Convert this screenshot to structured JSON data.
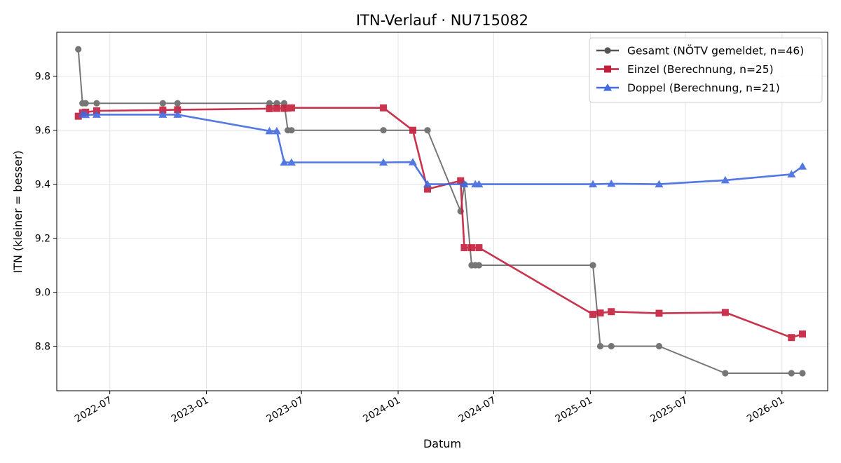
{
  "chart_data": {
    "type": "line",
    "title": "ITN-Verlauf · NU715082",
    "xlabel": "Datum",
    "ylabel": "ITN  (kleiner = besser)",
    "x_type": "date",
    "xlim": [
      "2022-03-22",
      "2026-03-29"
    ],
    "ylim": [
      8.635,
      9.963
    ],
    "x_ticks": [
      {
        "date": "2022-07-01",
        "label": "2022-07"
      },
      {
        "date": "2023-01-01",
        "label": "2023-01"
      },
      {
        "date": "2023-07-01",
        "label": "2023-07"
      },
      {
        "date": "2024-01-01",
        "label": "2024-01"
      },
      {
        "date": "2024-07-01",
        "label": "2024-07"
      },
      {
        "date": "2025-01-01",
        "label": "2025-01"
      },
      {
        "date": "2025-07-01",
        "label": "2025-07"
      },
      {
        "date": "2026-01-01",
        "label": "2026-01"
      }
    ],
    "y_ticks": [
      {
        "value": 8.8,
        "label": "8.8"
      },
      {
        "value": 9.0,
        "label": "9.0"
      },
      {
        "value": 9.2,
        "label": "9.2"
      },
      {
        "value": 9.4,
        "label": "9.4"
      },
      {
        "value": 9.6,
        "label": "9.6"
      },
      {
        "value": 9.8,
        "label": "9.8"
      }
    ],
    "grid": true,
    "legend_position": "top-right",
    "series": [
      {
        "name": "Gesamt (NÖTV gemeldet, n=46)",
        "color": "#555555",
        "marker": "circle",
        "points": [
          [
            "2022-05-02",
            9.9
          ],
          [
            "2022-05-10",
            9.7
          ],
          [
            "2022-05-16",
            9.7
          ],
          [
            "2022-06-06",
            9.7
          ],
          [
            "2022-10-10",
            9.7
          ],
          [
            "2022-11-07",
            9.7
          ],
          [
            "2023-05-01",
            9.7
          ],
          [
            "2023-05-15",
            9.7
          ],
          [
            "2023-05-29",
            9.7
          ],
          [
            "2023-06-05",
            9.6
          ],
          [
            "2023-06-12",
            9.6
          ],
          [
            "2023-12-04",
            9.6
          ],
          [
            "2024-02-26",
            9.6
          ],
          [
            "2024-04-29",
            9.3
          ],
          [
            "2024-05-06",
            9.4
          ],
          [
            "2024-05-20",
            9.1
          ],
          [
            "2024-05-27",
            9.1
          ],
          [
            "2024-06-03",
            9.1
          ],
          [
            "2025-01-06",
            9.1
          ],
          [
            "2025-01-20",
            8.8
          ],
          [
            "2025-02-10",
            8.8
          ],
          [
            "2025-05-12",
            8.8
          ],
          [
            "2025-09-15",
            8.7
          ],
          [
            "2026-01-19",
            8.7
          ],
          [
            "2026-02-09",
            8.7
          ]
        ]
      },
      {
        "name": "Einzel (Berechnung, n=25)",
        "color": "#c41e3a",
        "marker": "square",
        "points": [
          [
            "2022-05-02",
            9.652
          ],
          [
            "2022-05-10",
            9.665
          ],
          [
            "2022-05-16",
            9.667
          ],
          [
            "2022-06-06",
            9.672
          ],
          [
            "2022-10-10",
            9.675
          ],
          [
            "2022-11-07",
            9.676
          ],
          [
            "2023-05-01",
            9.68
          ],
          [
            "2023-05-15",
            9.681
          ],
          [
            "2023-05-29",
            9.681
          ],
          [
            "2023-06-05",
            9.682
          ],
          [
            "2023-06-12",
            9.683
          ],
          [
            "2023-12-04",
            9.683
          ],
          [
            "2024-01-29",
            9.6
          ],
          [
            "2024-02-26",
            9.382
          ],
          [
            "2024-04-29",
            9.413
          ],
          [
            "2024-05-06",
            9.165
          ],
          [
            "2024-05-20",
            9.165
          ],
          [
            "2024-06-03",
            9.165
          ],
          [
            "2025-01-06",
            8.918
          ],
          [
            "2025-01-20",
            8.923
          ],
          [
            "2025-02-10",
            8.928
          ],
          [
            "2025-05-12",
            8.922
          ],
          [
            "2025-09-15",
            8.925
          ],
          [
            "2026-01-19",
            8.832
          ],
          [
            "2026-02-09",
            8.845
          ]
        ]
      },
      {
        "name": "Doppel (Berechnung, n=21)",
        "color": "#4169e1",
        "marker": "triangle",
        "points": [
          [
            "2022-05-10",
            9.66
          ],
          [
            "2022-05-16",
            9.657
          ],
          [
            "2022-06-06",
            9.658
          ],
          [
            "2022-10-10",
            9.658
          ],
          [
            "2022-11-07",
            9.658
          ],
          [
            "2023-05-01",
            9.597
          ],
          [
            "2023-05-15",
            9.597
          ],
          [
            "2023-05-29",
            9.481
          ],
          [
            "2023-06-12",
            9.481
          ],
          [
            "2023-12-04",
            9.481
          ],
          [
            "2024-01-29",
            9.482
          ],
          [
            "2024-02-26",
            9.4
          ],
          [
            "2024-05-06",
            9.4
          ],
          [
            "2024-05-27",
            9.4
          ],
          [
            "2024-06-03",
            9.4
          ],
          [
            "2025-01-06",
            9.4
          ],
          [
            "2025-02-10",
            9.402
          ],
          [
            "2025-05-12",
            9.4
          ],
          [
            "2025-09-15",
            9.415
          ],
          [
            "2026-01-19",
            9.437
          ],
          [
            "2026-02-09",
            9.466
          ]
        ]
      }
    ]
  }
}
